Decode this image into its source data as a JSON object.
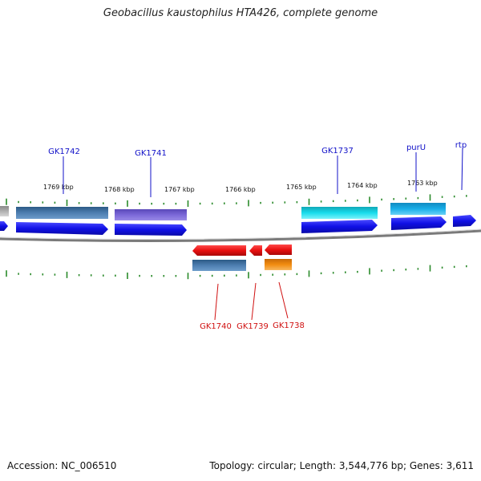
{
  "title": "Geobacillus kaustophilus HTA426, complete genome",
  "accession": "Accession: NC_006510",
  "summary": "Topology: circular; Length: 3,544,776 bp; Genes: 3,611",
  "scale_labels": [
    "1769 kbp",
    "1768 kbp",
    "1767 kbp",
    "1766 kbp",
    "1765 kbp",
    "1764 kbp",
    "1763 kbp"
  ],
  "gene_labels_top": [
    "GK1742",
    "GK1741",
    "GK1737",
    "purU",
    "rtp"
  ],
  "gene_labels_bottom": [
    "GK1740",
    "GK1739",
    "GK1738"
  ],
  "colors": {
    "top_label": "#1010c8",
    "bottom_label": "#d01010",
    "forward_arrow": "#1414e6",
    "reverse_arrow": "#e01010",
    "tick": "#2a8a2a",
    "backbone": "#808080",
    "steelblue": "#4d7eb0",
    "purple": "#7b68d8",
    "cyan": "#18dcec",
    "skyblue": "#18aee8",
    "orange": "#f28c10",
    "gray": "#b0b0b0"
  }
}
